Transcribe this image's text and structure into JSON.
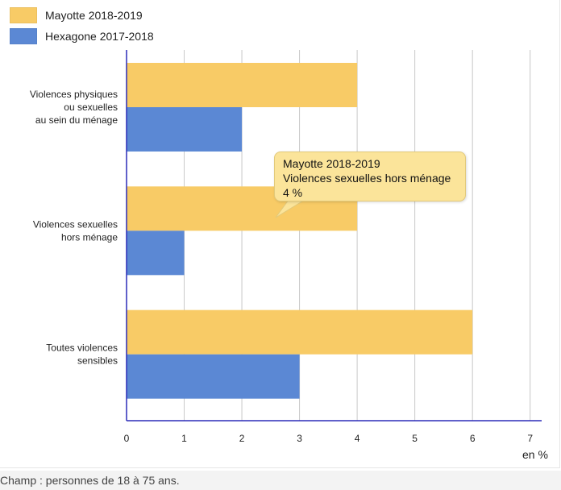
{
  "colors": {
    "mayotte": "#f8cb66",
    "hexagone": "#5b88d4",
    "axis": "#2b2bb8",
    "grid": "#c8c8c8"
  },
  "legend": [
    {
      "label": "Mayotte 2018-2019",
      "color": "#f8cb66"
    },
    {
      "label": "Hexagone 2017-2018",
      "color": "#5b88d4"
    }
  ],
  "chart_data": {
    "type": "bar",
    "orientation": "horizontal",
    "categories": [
      [
        "Violences physiques",
        "ou sexuelles",
        "au sein du ménage"
      ],
      [
        "Violences sexuelles",
        "hors ménage"
      ],
      [
        "Toutes violences",
        "sensibles"
      ]
    ],
    "series": [
      {
        "name": "Mayotte 2018-2019",
        "values": [
          4,
          4,
          6
        ]
      },
      {
        "name": "Hexagone 2017-2018",
        "values": [
          2,
          1,
          3
        ]
      }
    ],
    "xlim": [
      0,
      7.2
    ],
    "xticks": [
      0,
      1,
      2,
      3,
      4,
      5,
      6,
      7
    ],
    "xlabel": "en %",
    "grid": true,
    "legend_position": "top-left"
  },
  "tooltip": {
    "series": "Mayotte 2018-2019",
    "category": "Violences sexuelles hors ménage",
    "value": "4 %"
  },
  "footer": {
    "note": "Champ : personnes de 18 à 75 ans."
  }
}
